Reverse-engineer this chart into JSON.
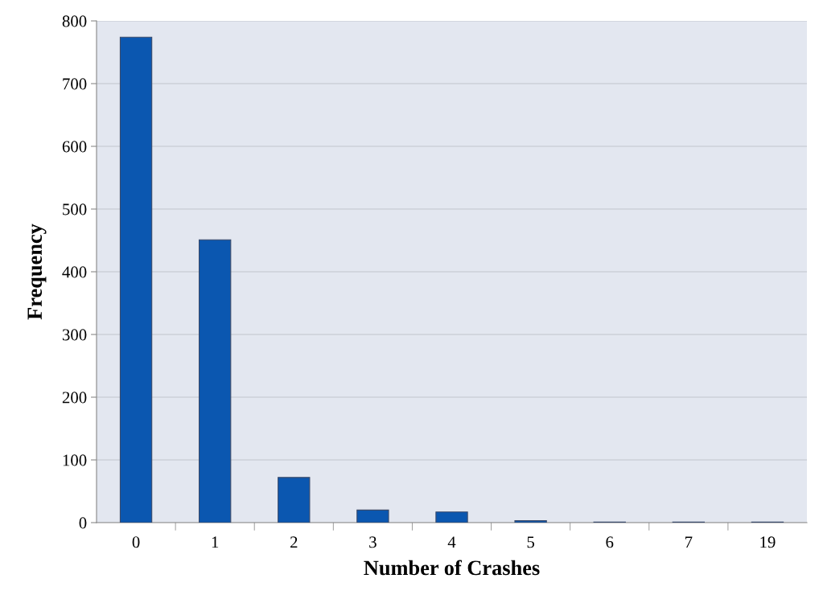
{
  "chart_data": {
    "type": "bar",
    "xlabel": "Number of Crashes",
    "ylabel": "Frequency",
    "categories": [
      "0",
      "1",
      "2",
      "3",
      "4",
      "5",
      "6",
      "7",
      "19"
    ],
    "values": [
      774,
      451,
      72,
      20,
      17,
      3,
      1,
      1,
      1
    ],
    "color": "#0b57b0",
    "ylim": [
      0,
      800
    ],
    "yticks": [
      0,
      100,
      200,
      300,
      400,
      500,
      600,
      700,
      800
    ],
    "grid": "y"
  }
}
